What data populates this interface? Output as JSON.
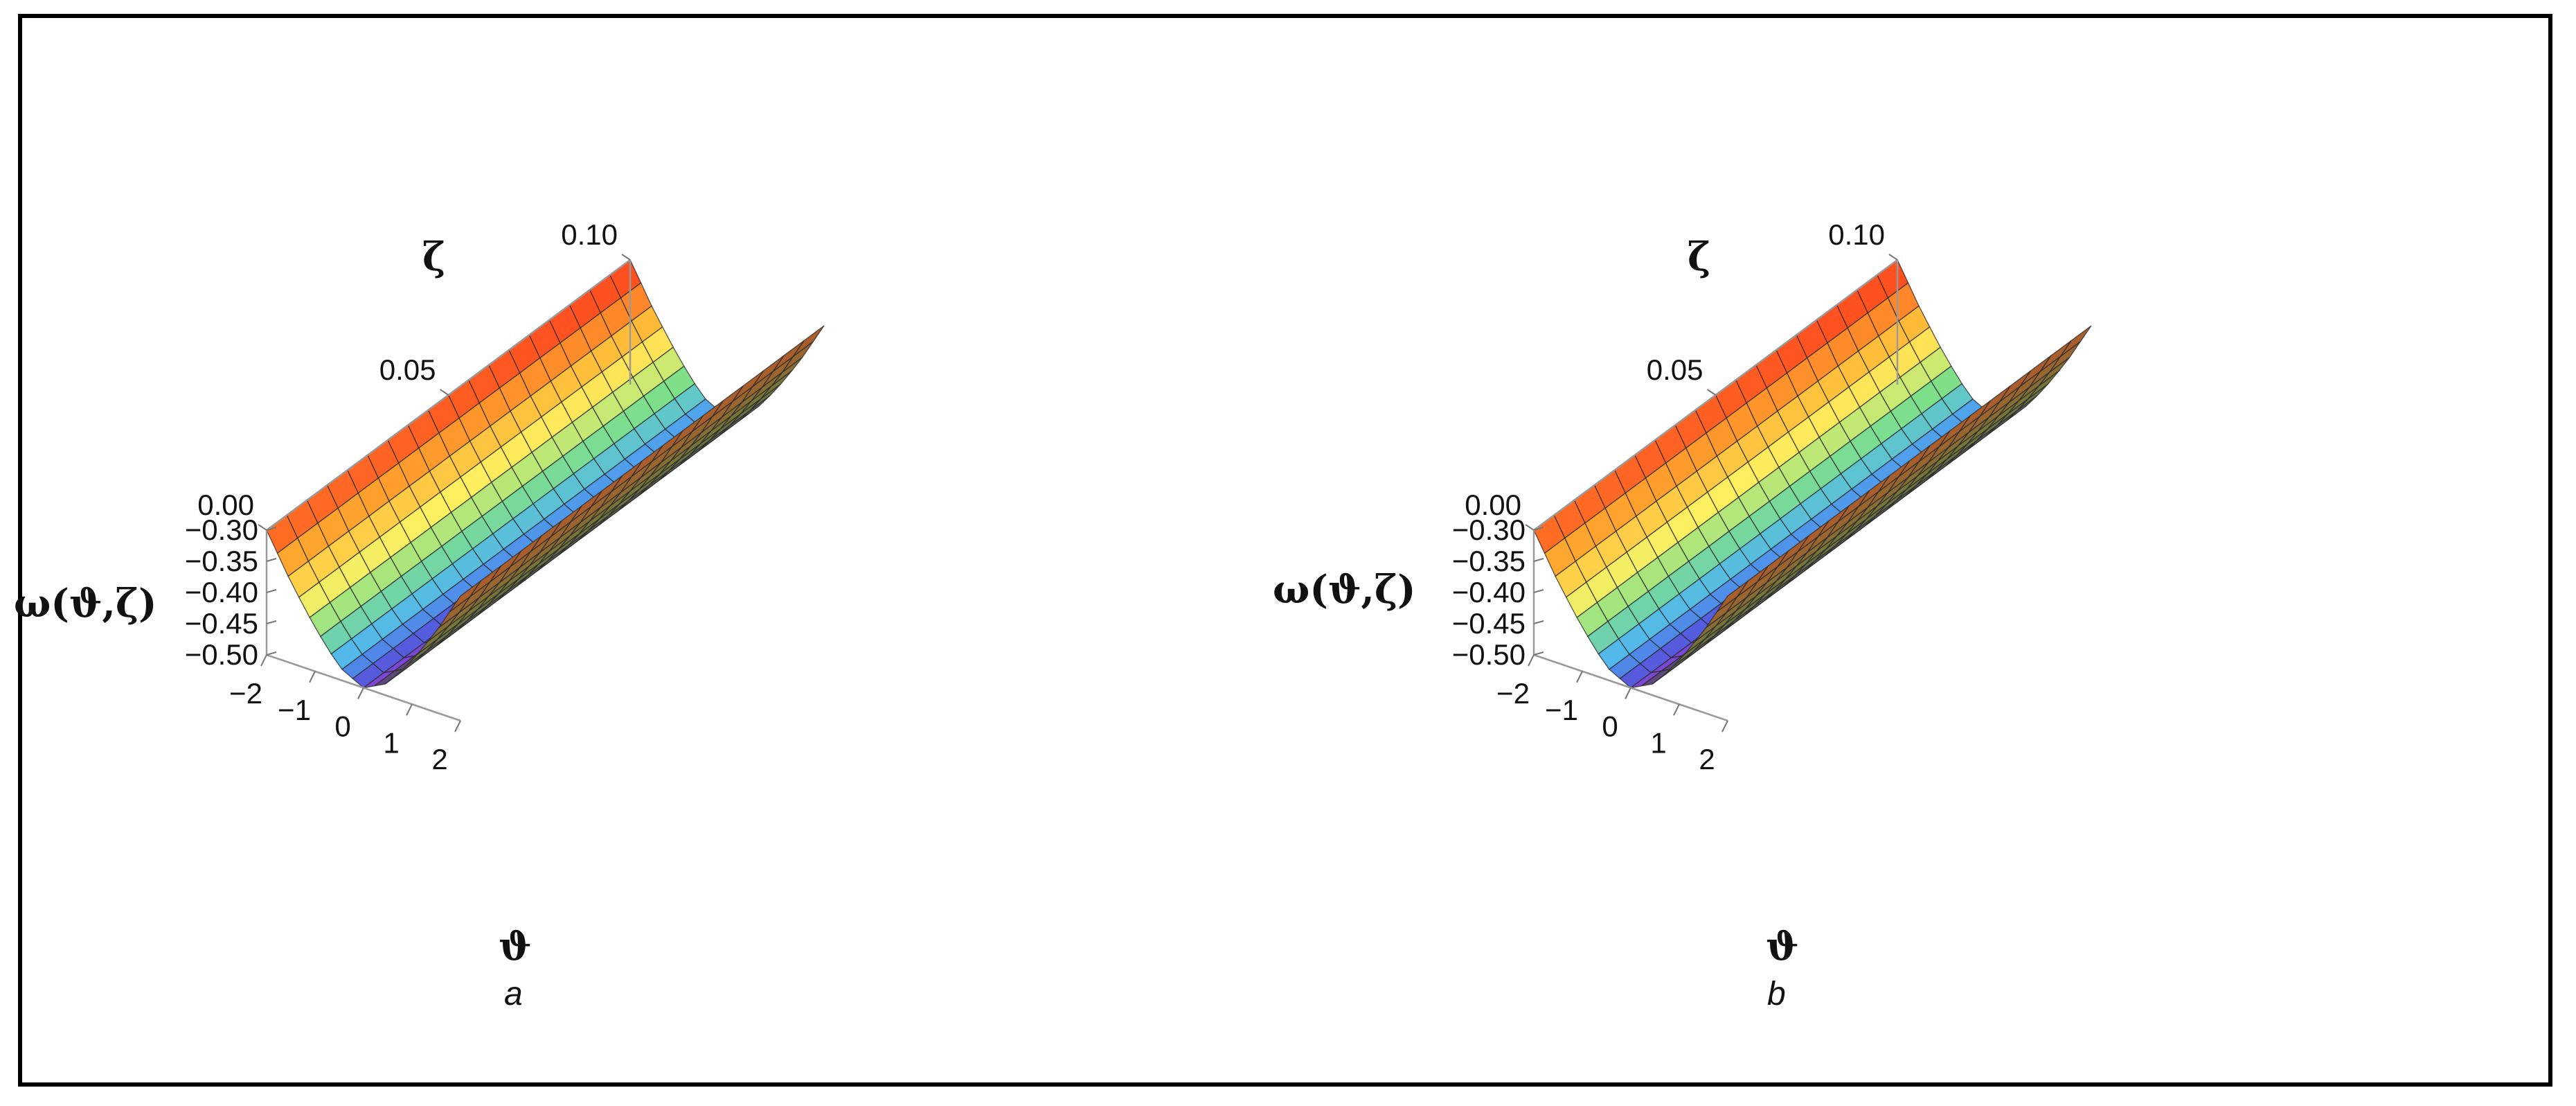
{
  "chart_data": [
    {
      "type": "surface3d",
      "panel_label": "a",
      "zlabel": "ω(ϑ,ζ)",
      "xlabel": "ϑ",
      "ylabel": "ζ",
      "x_range": [
        -2,
        2
      ],
      "y_range": [
        0.0,
        0.1
      ],
      "z_range": [
        -0.5,
        -0.3
      ],
      "x_ticks": [
        "−2",
        "−1",
        "0",
        "1",
        "2"
      ],
      "y_ticks": [
        "0.00",
        "0.05",
        "0.10"
      ],
      "z_ticks": [
        "−0.30",
        "−0.35",
        "−0.40",
        "−0.45",
        "−0.50"
      ],
      "x_tick_values": [
        -2,
        -1,
        0,
        1,
        2
      ],
      "y_tick_values": [
        0.0,
        0.05,
        0.1
      ],
      "z_tick_values": [
        -0.3,
        -0.35,
        -0.4,
        -0.45,
        -0.5
      ],
      "surface": {
        "x_samples": [
          -2,
          -1.5,
          -1,
          -0.5,
          0,
          0.5,
          1,
          1.5,
          2
        ],
        "z_values": [
          -0.3,
          -0.37,
          -0.43,
          -0.48,
          -0.5,
          -0.48,
          -0.43,
          -0.37,
          -0.3
        ],
        "mesh": "regular grid, ~18 × 18 lines",
        "colormap": [
          "#8a3fd0",
          "#4f5fe0",
          "#4fb6f0",
          "#7fe08a",
          "#fff060",
          "#ffb030",
          "#ff5020"
        ]
      }
    },
    {
      "type": "surface3d",
      "panel_label": "b",
      "zlabel": "ω(ϑ,ζ)",
      "xlabel": "ϑ",
      "ylabel": "ζ",
      "x_range": [
        -2,
        2
      ],
      "y_range": [
        0.0,
        0.1
      ],
      "z_range": [
        -0.5,
        -0.3
      ],
      "x_ticks": [
        "−2",
        "−1",
        "0",
        "1",
        "2"
      ],
      "y_ticks": [
        "0.00",
        "0.05",
        "0.10"
      ],
      "z_ticks": [
        "−0.30",
        "−0.35",
        "−0.40",
        "−0.45",
        "−0.50"
      ],
      "x_tick_values": [
        -2,
        -1,
        0,
        1,
        2
      ],
      "y_tick_values": [
        0.0,
        0.05,
        0.1
      ],
      "z_tick_values": [
        -0.3,
        -0.35,
        -0.4,
        -0.45,
        -0.5
      ],
      "surface": {
        "x_samples": [
          -2,
          -1.5,
          -1,
          -0.5,
          0,
          0.5,
          1,
          1.5,
          2
        ],
        "z_values": [
          -0.3,
          -0.37,
          -0.43,
          -0.48,
          -0.5,
          -0.48,
          -0.43,
          -0.37,
          -0.3
        ],
        "mesh": "regular grid, ~18 × 18 lines",
        "colormap": [
          "#8a3fd0",
          "#4f5fe0",
          "#4fb6f0",
          "#7fe08a",
          "#fff060",
          "#ffb030",
          "#ff5020"
        ]
      }
    }
  ]
}
